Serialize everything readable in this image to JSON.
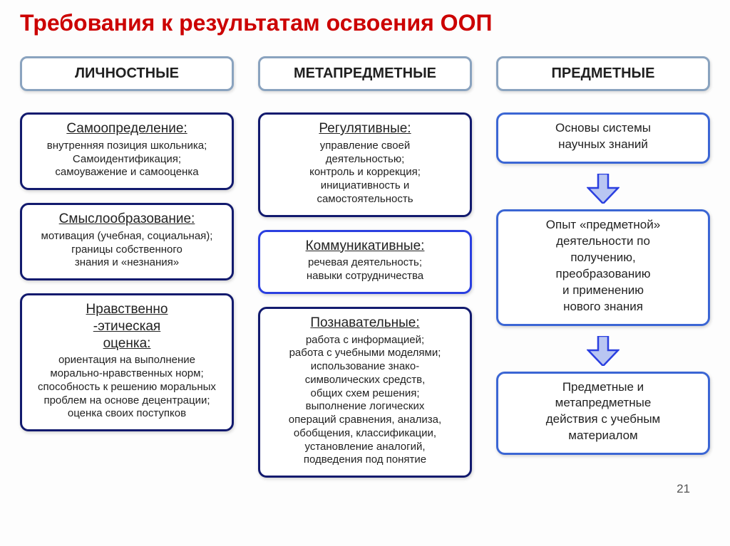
{
  "title": "Требования к результатам освоения ООП",
  "page_number": "21",
  "colors": {
    "title": "#cc0000",
    "header_border": "#8aa3bf",
    "card_border_dark": "#121a6e",
    "card_border_blue1": "#2a3fe0",
    "card_border_blue2": "#3b66d4",
    "arrow_stroke": "#2a3fe0",
    "arrow_fill": "#b9c6f2"
  },
  "columns": [
    {
      "header": "ЛИЧНОСТНЫЕ",
      "cards": [
        {
          "title": "Самоопределение:",
          "body": "внутренняя позиция школьника;\nСамоидентификация;\nсамоуважение и самооценка"
        },
        {
          "title": "Смыслообразование:",
          "body": "мотивация (учебная, социальная);\nграницы собственного\nзнания и «незнания»"
        },
        {
          "title": "Нравственно\n-этическая\nоценка:",
          "body": "ориентация на выполнение\nморально-нравственных норм;\nспособность к решению моральных\nпроблем на основе децентрации;\nоценка своих поступков"
        }
      ]
    },
    {
      "header": "МЕТАПРЕДМЕТНЫЕ",
      "cards": [
        {
          "title": "Регулятивные:",
          "body": "управление своей\nдеятельностью;\nконтроль и коррекция;\nинициативность и\nсамостоятельность"
        },
        {
          "title": "Коммуникативные:",
          "body": "речевая деятельность;\nнавыки сотрудничества"
        },
        {
          "title": "Познавательные:",
          "body": "работа с информацией;\nработа с учебными моделями;\nиспользование знако-\nсимволических средств,\nобщих схем решения;\nвыполнение логических\nопераций сравнения,  анализа,\nобобщения, классификации,\nустановление аналогий,\nподведения под понятие"
        }
      ]
    },
    {
      "header": "ПРЕДМЕТНЫЕ",
      "cards": [
        {
          "plain": "Основы системы\nнаучных знаний"
        },
        {
          "plain": "Опыт «предметной»\nдеятельности по\nполучению,\nпреобразованию\nи применению\nнового знания"
        },
        {
          "plain": "Предметные и\nметапредметные\nдействия с учебным\nматериалом"
        }
      ]
    }
  ]
}
